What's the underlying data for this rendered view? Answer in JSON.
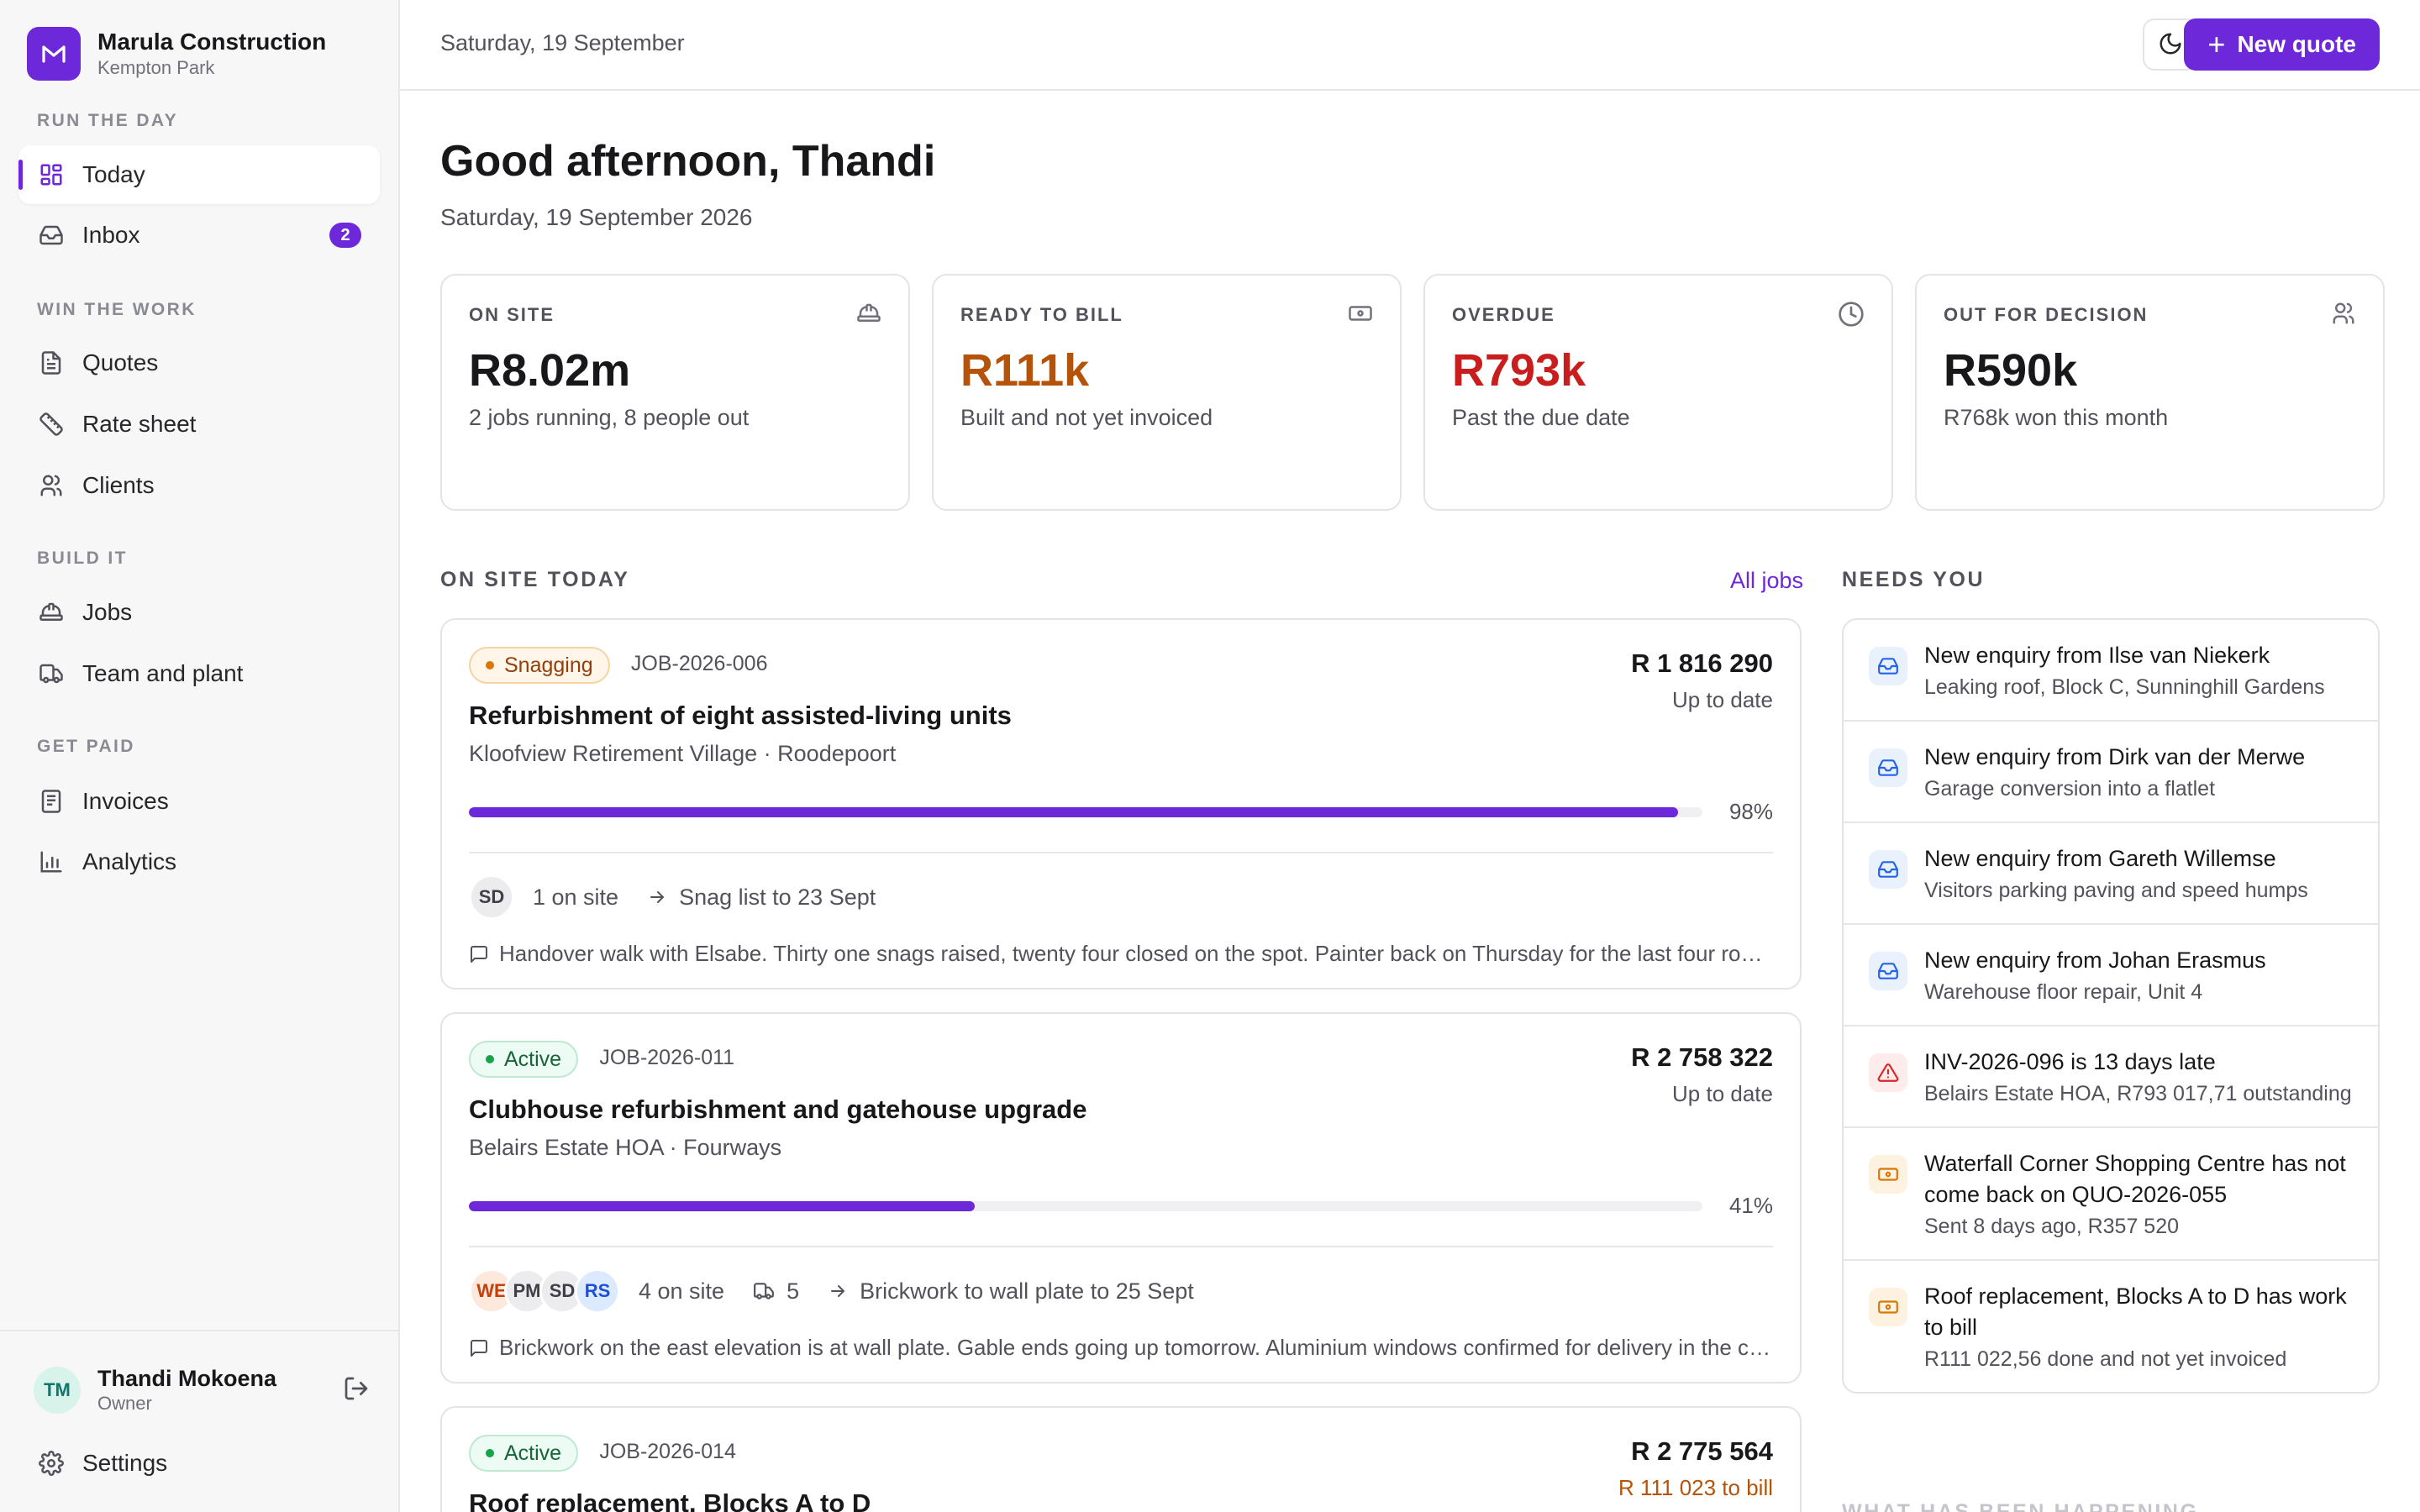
{
  "brand": {
    "name": "Marula Construction",
    "location": "Kempton Park",
    "logo_letter": "M"
  },
  "nav": {
    "sections": [
      {
        "label": "Run the day",
        "items": [
          {
            "label": "Today",
            "icon": "dashboard-icon",
            "active": true
          },
          {
            "label": "Inbox",
            "icon": "inbox-icon",
            "badge": "2"
          }
        ]
      },
      {
        "label": "Win the work",
        "items": [
          {
            "label": "Quotes",
            "icon": "document-icon"
          },
          {
            "label": "Rate sheet",
            "icon": "ruler-icon"
          },
          {
            "label": "Clients",
            "icon": "users-icon"
          }
        ]
      },
      {
        "label": "Build it",
        "items": [
          {
            "label": "Jobs",
            "icon": "hardhat-icon"
          },
          {
            "label": "Team and plant",
            "icon": "truck-icon"
          }
        ]
      },
      {
        "label": "Get paid",
        "items": [
          {
            "label": "Invoices",
            "icon": "receipt-icon"
          },
          {
            "label": "Analytics",
            "icon": "bar-chart-icon"
          }
        ]
      }
    ]
  },
  "user": {
    "initials": "TM",
    "name": "Thandi Mokoena",
    "role": "Owner"
  },
  "settings_label": "Settings",
  "topbar": {
    "date": "Saturday, 19 September",
    "new_quote_label": "New quote"
  },
  "greeting": {
    "title": "Good afternoon, Thandi",
    "date": "Saturday, 19 September 2026"
  },
  "stats": [
    {
      "label": "On site",
      "value": "R8.02m",
      "sub": "2 jobs running, 8 people out",
      "icon": "hardhat-icon",
      "tone": "default"
    },
    {
      "label": "Ready to bill",
      "value": "R111k",
      "sub": "Built and not yet invoiced",
      "icon": "banknote-icon",
      "tone": "amber"
    },
    {
      "label": "Overdue",
      "value": "R793k",
      "sub": "Past the due date",
      "icon": "clock-icon",
      "tone": "red"
    },
    {
      "label": "Out for decision",
      "value": "R590k",
      "sub": "R768k won this month",
      "icon": "users-icon",
      "tone": "default"
    }
  ],
  "on_site": {
    "title": "On site today",
    "all_jobs_label": "All jobs",
    "jobs": [
      {
        "status": "Snagging",
        "code": "JOB-2026-006",
        "amount": "R 1 816 290",
        "billing": "Up to date",
        "title": "Refurbishment of eight assisted-living units",
        "location": "Kloofview Retirement Village · Roodepoort",
        "progress": 0.98,
        "progress_label": "98%",
        "people": [
          "SD"
        ],
        "on_site": "1 on site",
        "next": "Snag list to 23 Sept",
        "note": "Handover walk with Elsabe. Thirty one snags raised, twenty four closed on the spot. Painter back on Thursday for the last four rooms."
      },
      {
        "status": "Active",
        "code": "JOB-2026-011",
        "amount": "R 2 758 322",
        "billing": "Up to date",
        "title": "Clubhouse refurbishment and gatehouse upgrade",
        "location": "Belairs Estate HOA · Fourways",
        "progress": 0.41,
        "progress_label": "41%",
        "people": [
          "WE",
          "PM",
          "SD",
          "RS"
        ],
        "on_site": "4 on site",
        "plant": "5",
        "next": "Brickwork to wall plate to 25 Sept",
        "note": "Brickwork on the east elevation is at wall plate. Gable ends going up tomorrow. Aluminium windows confirmed for delivery in the coming week."
      },
      {
        "status": "Active",
        "code": "JOB-2026-014",
        "amount": "R 2 775 564",
        "billing": "R 111 023 to bill",
        "title": "Roof replacement, Blocks A to D"
      }
    ]
  },
  "needs_you": {
    "title": "Needs you",
    "items": [
      {
        "icon": "inbox-icon",
        "tone": "blue",
        "title": "New enquiry from Ilse van Niekerk",
        "sub": "Leaking roof, Block C, Sunninghill Gardens"
      },
      {
        "icon": "inbox-icon",
        "tone": "blue",
        "title": "New enquiry from Dirk van der Merwe",
        "sub": "Garage conversion into a flatlet"
      },
      {
        "icon": "inbox-icon",
        "tone": "blue",
        "title": "New enquiry from Gareth Willemse",
        "sub": "Visitors parking paving and speed humps"
      },
      {
        "icon": "inbox-icon",
        "tone": "blue",
        "title": "New enquiry from Johan Erasmus",
        "sub": "Warehouse floor repair, Unit 4"
      },
      {
        "icon": "alert-triangle-icon",
        "tone": "red",
        "title": "INV-2026-096 is 13 days late",
        "sub": "Belairs Estate HOA, R793 017,71 outstanding"
      },
      {
        "icon": "banknote-icon",
        "tone": "amber",
        "title": "Waterfall Corner Shopping Centre has not come back on QUO-2026-055",
        "sub": "Sent 8 days ago, R357 520"
      },
      {
        "icon": "banknote-icon",
        "tone": "amber",
        "title": "Roof replacement, Blocks A to D has work to bill",
        "sub": "R111 022,56 done and not yet invoiced"
      }
    ]
  },
  "happening": {
    "title": "What has been happening"
  },
  "colors": {
    "accent": "#6d28d9",
    "amber": "#b45309",
    "red": "#c81e1e"
  }
}
